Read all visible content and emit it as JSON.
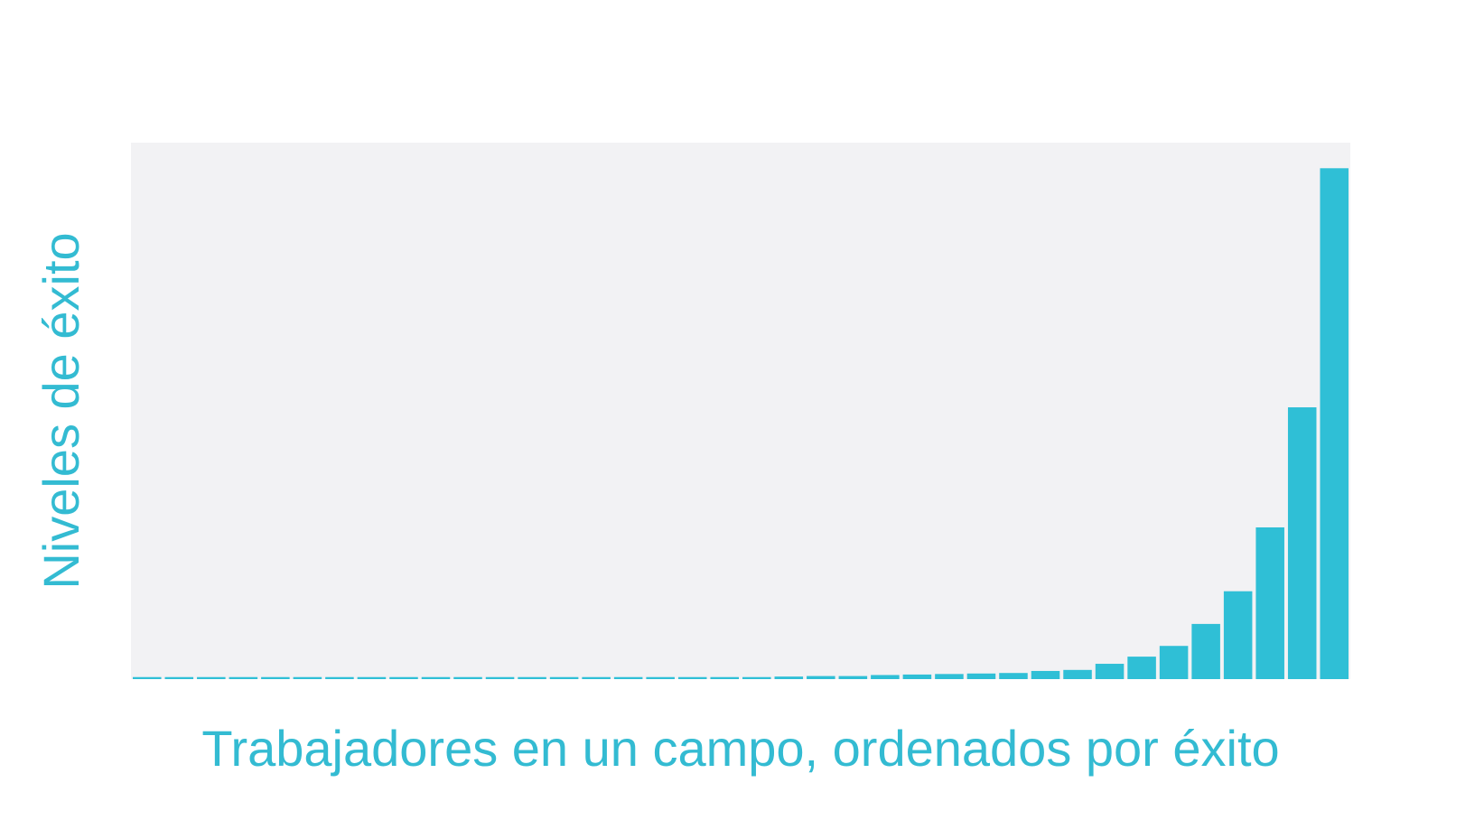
{
  "colors": {
    "bar": "#2fbfd6",
    "label": "#33bbd2",
    "plot_bg": "#f2f2f4",
    "page_bg": "#ffffff"
  },
  "chart_data": {
    "type": "bar",
    "title": "",
    "xlabel": "Trabajadores en un campo, ordenados por éxito",
    "ylabel": "Niveles de éxito",
    "grid": false,
    "legend": "none",
    "ylim": [
      0,
      1.05
    ],
    "values": [
      0.004,
      0.004,
      0.004,
      0.004,
      0.004,
      0.004,
      0.004,
      0.004,
      0.004,
      0.004,
      0.004,
      0.004,
      0.004,
      0.004,
      0.004,
      0.004,
      0.004,
      0.004,
      0.004,
      0.004,
      0.005,
      0.006,
      0.006,
      0.008,
      0.009,
      0.01,
      0.011,
      0.012,
      0.016,
      0.018,
      0.03,
      0.044,
      0.065,
      0.108,
      0.172,
      0.297,
      0.532,
      1.0
    ]
  }
}
